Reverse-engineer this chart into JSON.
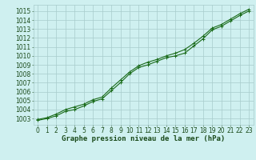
{
  "title": "Graphe pression niveau de la mer (hPa)",
  "xlabel_hours": [
    0,
    1,
    2,
    3,
    4,
    5,
    6,
    7,
    8,
    9,
    10,
    11,
    12,
    13,
    14,
    15,
    16,
    17,
    18,
    19,
    20,
    21,
    22,
    23
  ],
  "series1": [
    1002.8,
    1003.0,
    1003.3,
    1003.8,
    1004.0,
    1004.4,
    1004.9,
    1005.2,
    1006.1,
    1007.0,
    1008.0,
    1008.7,
    1009.0,
    1009.4,
    1009.8,
    1010.0,
    1010.3,
    1011.1,
    1011.9,
    1012.9,
    1013.3,
    1013.9,
    1014.5,
    1015.0
  ],
  "series2": [
    1002.9,
    1003.1,
    1003.5,
    1004.0,
    1004.3,
    1004.6,
    1005.1,
    1005.4,
    1006.4,
    1007.3,
    1008.2,
    1008.9,
    1009.3,
    1009.6,
    1010.0,
    1010.3,
    1010.7,
    1011.4,
    1012.2,
    1013.1,
    1013.5,
    1014.1,
    1014.7,
    1015.2
  ],
  "yticks": [
    1003,
    1004,
    1005,
    1006,
    1007,
    1008,
    1009,
    1010,
    1011,
    1012,
    1013,
    1014,
    1015
  ],
  "ylim": [
    1002.3,
    1015.7
  ],
  "xlim": [
    -0.5,
    23.5
  ],
  "line_color": "#1a6b1a",
  "marker_color": "#1a6b1a",
  "bg_color": "#cff0f0",
  "grid_color": "#a8cccc",
  "text_color": "#1a4a1a",
  "title_fontsize": 6.5,
  "tick_fontsize": 5.5,
  "line_width": 0.8,
  "marker_size": 2.5
}
